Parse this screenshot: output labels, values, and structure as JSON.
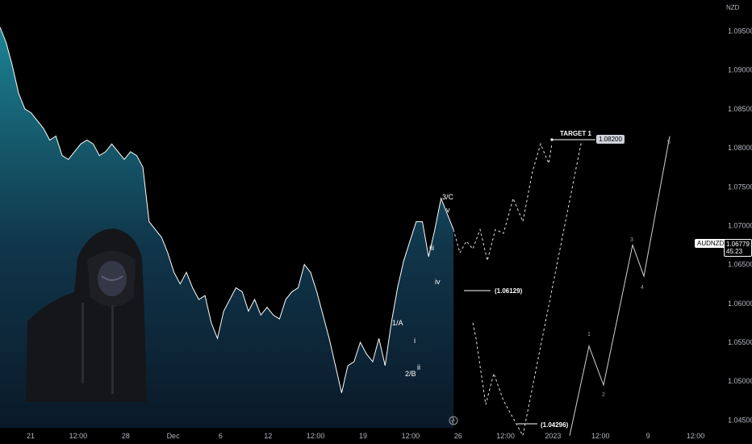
{
  "header": {
    "currency": "NZD"
  },
  "symbol": {
    "ticker": "AUDNZD",
    "price": "1.06779",
    "countdown": "45:23"
  },
  "target": {
    "label": "TARGET 1",
    "value": "1.08200"
  },
  "levels": {
    "mid": "(1.06129)",
    "low": "(1.04296)"
  },
  "waves": {
    "top": "3/C",
    "v": "v",
    "iii": "iii",
    "iv": "iv",
    "i": "i",
    "ii": "ii",
    "one_a": "1/A",
    "two_b": "2/B"
  },
  "projection_labels": [
    "1",
    "2",
    "3",
    "4",
    "5"
  ],
  "colors": {
    "line": "#ffffff",
    "area_top": "#1c8a9a",
    "area_bottom": "#0a1a2a",
    "accent": "#d1d4dc"
  },
  "chart_data": {
    "type": "area",
    "symbol": "AUDNZD",
    "y_ticks": [
      "1.09500",
      "1.09000",
      "1.08500",
      "1.08000",
      "1.07500",
      "1.07000",
      "1.06500",
      "1.06000",
      "1.05500",
      "1.05000",
      "1.04500"
    ],
    "x_ticks": [
      "21",
      "12:00",
      "28",
      "Dec",
      "6",
      "12",
      "12:00",
      "19",
      "12:00",
      "26",
      "12:00",
      "2023",
      "12:00",
      "9",
      "12:00"
    ],
    "ylim": [
      1.044,
      1.099
    ],
    "series": [
      {
        "values": [
          1.0955,
          1.0935,
          1.0905,
          1.087,
          1.085,
          1.0845,
          1.0835,
          1.0825,
          1.081,
          1.0815,
          1.079,
          1.0785,
          1.0795,
          1.0805,
          1.081,
          1.0805,
          1.079,
          1.0795,
          1.0805,
          1.0795,
          1.0785,
          1.0795,
          1.079,
          1.0775,
          1.0705,
          1.0695,
          1.0685,
          1.0665,
          1.064,
          1.0625,
          1.064,
          1.062,
          1.0605,
          1.061,
          1.0575,
          1.0555,
          1.059,
          1.0605,
          1.062,
          1.0615,
          1.059,
          1.0605,
          1.0585,
          1.0595,
          1.0585,
          1.058,
          1.0605,
          1.0615,
          1.062,
          1.065,
          1.064,
          1.0615,
          1.0585,
          1.0555,
          1.052,
          1.0485,
          1.052,
          1.0525,
          1.055,
          1.0535,
          1.0525,
          1.0555,
          1.052,
          1.0575,
          1.062,
          1.0655,
          1.068,
          1.0705,
          1.0705,
          1.066,
          1.0695,
          1.0735,
          1.0715,
          1.0695
        ]
      }
    ],
    "projections": [
      {
        "style": "dashed",
        "points": [
          1.0695,
          1.0665,
          1.068,
          1.067,
          1.0695,
          1.0655,
          1.0695,
          1.069,
          1.0735,
          1.0705,
          1.077,
          1.0805,
          1.078,
          1.0805
        ]
      },
      {
        "style": "dashed",
        "points": [
          1.0575,
          1.0555,
          1.047,
          1.051,
          1.0475,
          1.043,
          1.0805,
          1.0805
        ]
      },
      {
        "style": "solid",
        "points": [
          1.043,
          1.0545,
          1.0495,
          1.0675,
          1.0635,
          1.0815
        ]
      }
    ]
  }
}
